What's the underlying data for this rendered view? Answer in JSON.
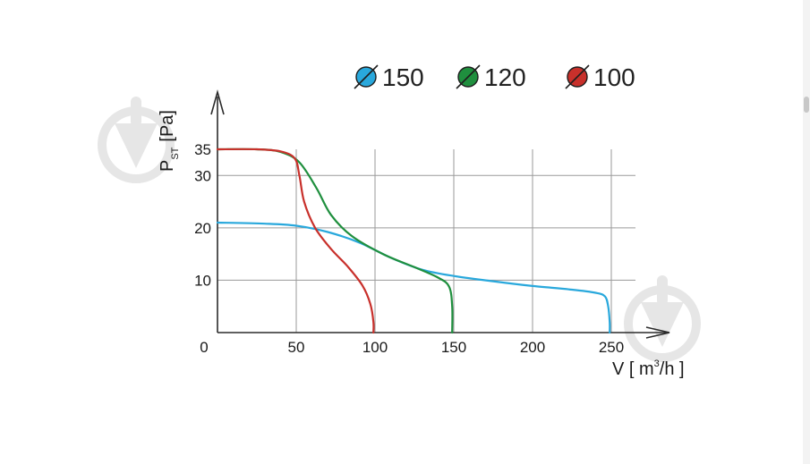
{
  "chart_data": {
    "type": "line",
    "xlabel": "V [ m³/h ]",
    "xlabel_main": "V [ m",
    "xlabel_sup": "3",
    "xlabel_tail": "/h ]",
    "ylabel": "PST [Pa]",
    "ylabel_main": "P",
    "ylabel_sub": "ST",
    "ylabel_tail": "[Pa]",
    "xlim": [
      0,
      265
    ],
    "ylim": [
      0,
      40
    ],
    "x_ticks": [
      0,
      50,
      100,
      150,
      200,
      250
    ],
    "x_tick_labels": [
      "0",
      "50",
      "100",
      "150",
      "200",
      "250"
    ],
    "y_ticks": [
      10,
      20,
      30,
      35
    ],
    "y_tick_labels": [
      "10",
      "20",
      "30",
      "35"
    ],
    "grid": true,
    "legend_position": "top",
    "series": [
      {
        "name": "Ø150",
        "label": "150",
        "color": "#29a8dc",
        "points": [
          [
            0,
            21
          ],
          [
            30,
            20.8
          ],
          [
            50,
            20.4
          ],
          [
            70,
            19.2
          ],
          [
            90,
            17.2
          ],
          [
            110,
            14.3
          ],
          [
            130,
            12
          ],
          [
            150,
            10.8
          ],
          [
            175,
            9.8
          ],
          [
            200,
            8.9
          ],
          [
            225,
            8.2
          ],
          [
            240,
            7.6
          ],
          [
            246,
            6.9
          ],
          [
            248,
            5
          ],
          [
            249,
            2
          ],
          [
            249,
            0
          ]
        ]
      },
      {
        "name": "Ø120",
        "label": "120",
        "color": "#1f8f3e",
        "points": [
          [
            0,
            35
          ],
          [
            25,
            35
          ],
          [
            40,
            34.5
          ],
          [
            52,
            32.5
          ],
          [
            63,
            27.5
          ],
          [
            72,
            22.5
          ],
          [
            85,
            18.5
          ],
          [
            105,
            15
          ],
          [
            125,
            12.5
          ],
          [
            140,
            10.5
          ],
          [
            147,
            8.8
          ],
          [
            149,
            5
          ],
          [
            149,
            0
          ]
        ]
      },
      {
        "name": "Ø100",
        "label": "100",
        "color": "#c8302b",
        "points": [
          [
            0,
            35
          ],
          [
            25,
            35
          ],
          [
            40,
            34.6
          ],
          [
            49,
            33.3
          ],
          [
            52,
            30
          ],
          [
            55,
            25
          ],
          [
            62,
            20
          ],
          [
            72,
            16
          ],
          [
            83,
            12.5
          ],
          [
            92,
            9
          ],
          [
            97,
            5.5
          ],
          [
            99,
            2
          ],
          [
            99,
            0
          ]
        ]
      }
    ]
  }
}
